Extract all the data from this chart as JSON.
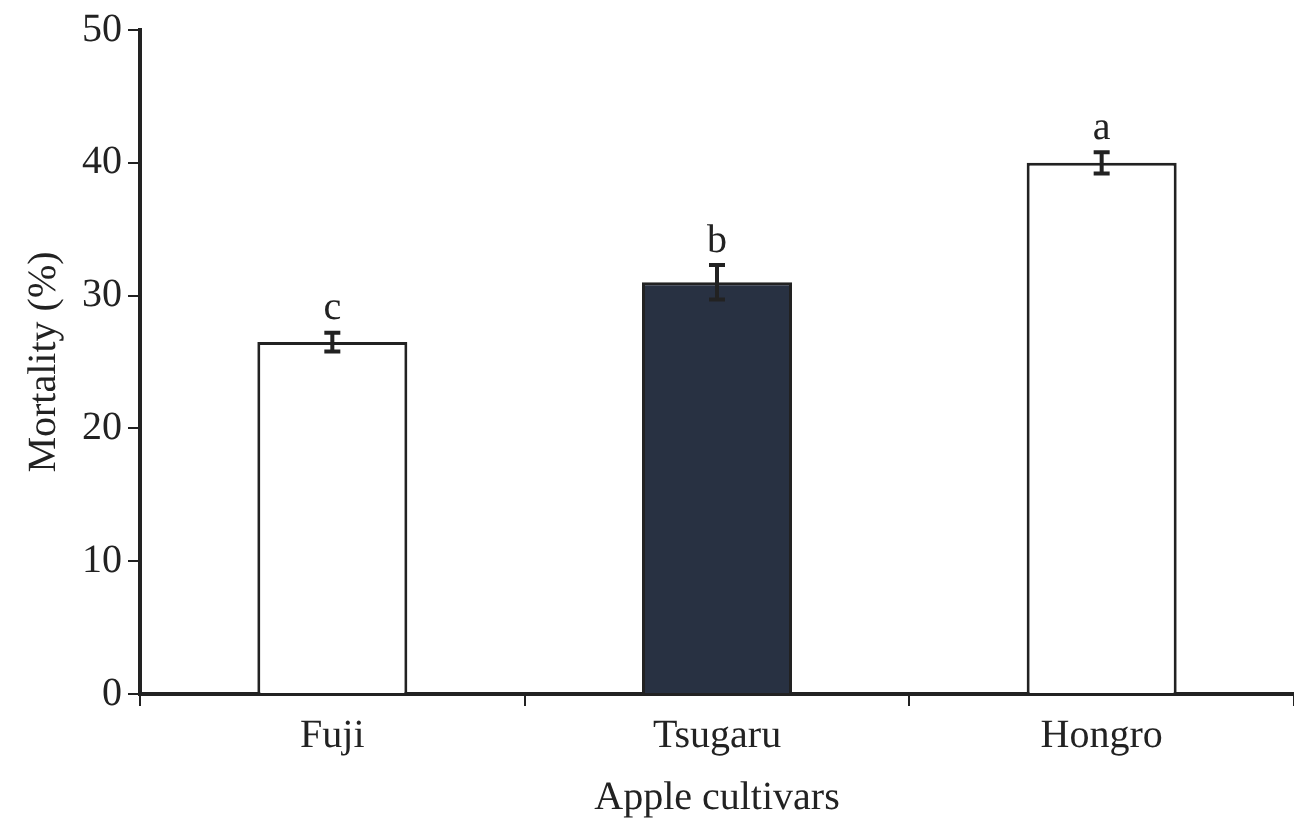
{
  "chart_data": {
    "type": "bar",
    "xlabel": "Apple cultivars",
    "ylabel": "Mortality (%)",
    "categories": [
      "Fuji",
      "Tsugaru",
      "Hongro"
    ],
    "values": [
      26.5,
      31,
      40
    ],
    "colors": [
      "#ffffff",
      "#283142",
      "#ffffff"
    ],
    "errors": [
      0.7,
      1.3,
      0.8
    ],
    "ylim": [
      0,
      50
    ],
    "yticks": [
      0,
      10,
      20,
      30,
      40,
      50
    ],
    "grid": false,
    "legend": false,
    "annotations": [
      {
        "text": "c",
        "x": "Fuji",
        "y": 27.2
      },
      {
        "text": "b",
        "x": "Tsugaru",
        "y": 32.3
      },
      {
        "text": "a",
        "x": "Hongro",
        "y": 40.8
      }
    ]
  }
}
